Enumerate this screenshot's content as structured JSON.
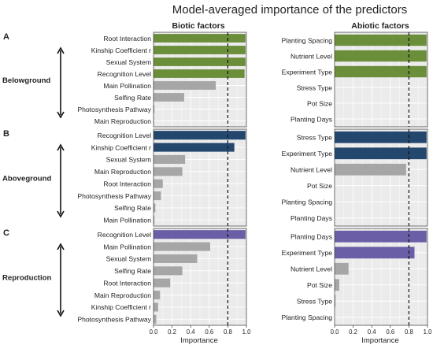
{
  "title": "Model-averaged importance of the predictors",
  "col_titles": [
    "Biotic factors",
    "Abiotic factors"
  ],
  "xlabel": "Importance",
  "xticks": [
    "0.0",
    "0.2",
    "0.4",
    "0.6",
    "0.8",
    "1.0"
  ],
  "row_labels": [
    "A",
    "B",
    "C"
  ],
  "row_names": [
    "Belowground",
    "Aboveground",
    "Reproduction"
  ],
  "colors": {
    "A": "#6b8e3a",
    "B": "#24476e",
    "C": "#6a5ea6",
    "nonsig": "#a6a6a6",
    "panel_bg": "#ebebeb",
    "grid": "#ffffff"
  },
  "chart_data": [
    {
      "type": "bar",
      "orientation": "horizontal",
      "row": "A",
      "column": "Biotic factors",
      "xlim": [
        0,
        1
      ],
      "threshold": 0.8,
      "categories": [
        "Root Interaction",
        "Kinship Coefficient r",
        "Sexual System",
        "Recognition Level",
        "Main Pollination",
        "Selfing Rate",
        "Photosynthesis Pathway",
        "Main Reproduction"
      ],
      "values": [
        0.99,
        0.99,
        0.99,
        0.98,
        0.67,
        0.33,
        0.01,
        0.005
      ],
      "highlighted": [
        true,
        true,
        true,
        true,
        false,
        false,
        false,
        false
      ]
    },
    {
      "type": "bar",
      "orientation": "horizontal",
      "row": "A",
      "column": "Abiotic factors",
      "xlim": [
        0,
        1
      ],
      "threshold": 0.8,
      "categories": [
        "Planting Spacing",
        "Nutrient Level",
        "Experiment Type",
        "Stress Type",
        "Pot Size",
        "Planting Days"
      ],
      "values": [
        0.99,
        0.99,
        0.99,
        0.0,
        0.0,
        0.0
      ],
      "highlighted": [
        true,
        true,
        true,
        false,
        false,
        false
      ]
    },
    {
      "type": "bar",
      "orientation": "horizontal",
      "row": "B",
      "column": "Biotic factors",
      "xlim": [
        0,
        1
      ],
      "threshold": 0.8,
      "categories": [
        "Recognition Level",
        "Kinship Coefficient r",
        "Sexual System",
        "Main Reproduction",
        "Root Interaction",
        "Photosynthesis Pathway",
        "Selfing Rate",
        "Main Pollination"
      ],
      "values": [
        0.99,
        0.87,
        0.34,
        0.31,
        0.1,
        0.08,
        0.02,
        0.01
      ],
      "highlighted": [
        true,
        true,
        false,
        false,
        false,
        false,
        false,
        false
      ]
    },
    {
      "type": "bar",
      "orientation": "horizontal",
      "row": "B",
      "column": "Abiotic factors",
      "xlim": [
        0,
        1
      ],
      "threshold": 0.8,
      "categories": [
        "Stress Type",
        "Experiment Type",
        "Nutrient Level",
        "Pot Size",
        "Planting Spacing",
        "Planting Days"
      ],
      "values": [
        0.99,
        0.99,
        0.77,
        0.0,
        0.0,
        0.0
      ],
      "highlighted": [
        true,
        true,
        false,
        false,
        false,
        false
      ]
    },
    {
      "type": "bar",
      "orientation": "horizontal",
      "row": "C",
      "column": "Biotic factors",
      "xlim": [
        0,
        1
      ],
      "threshold": 0.8,
      "categories": [
        "Recognition Level",
        "Main Pollination",
        "Sexual System",
        "Selfing Rate",
        "Root Interaction",
        "Main Reproduction",
        "Kinship Coefficient r",
        "Photosynthesis Pathway"
      ],
      "values": [
        0.99,
        0.61,
        0.47,
        0.31,
        0.18,
        0.07,
        0.05,
        0.03
      ],
      "highlighted": [
        true,
        false,
        false,
        false,
        false,
        false,
        false,
        false
      ]
    },
    {
      "type": "bar",
      "orientation": "horizontal",
      "row": "C",
      "column": "Abiotic factors",
      "xlim": [
        0,
        1
      ],
      "threshold": 0.8,
      "categories": [
        "Planting Days",
        "Experiment Type",
        "Nutrient Level",
        "Pot Size",
        "Stress Type",
        "Planting Spacing"
      ],
      "values": [
        0.99,
        0.86,
        0.15,
        0.05,
        0.01,
        0.0
      ],
      "highlighted": [
        true,
        true,
        false,
        false,
        false,
        false
      ]
    }
  ]
}
